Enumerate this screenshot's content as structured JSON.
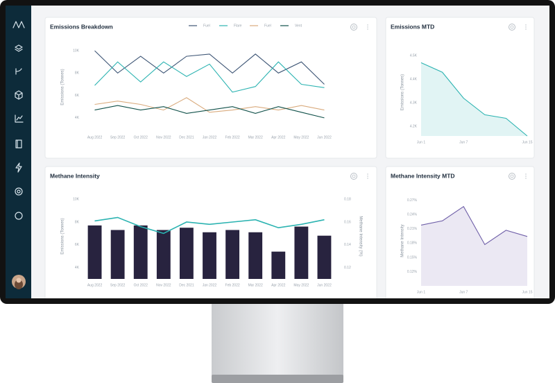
{
  "chart_data": [
    {
      "type": "line",
      "title": "Emissions Breakdown",
      "y_label": "Emissions (Tonnes)",
      "categories": [
        "Aug 2022",
        "Sep 2022",
        "Oct 2022",
        "Nov 2022",
        "Dec 2021",
        "Jan 2022",
        "Feb 2022",
        "Mar 2022",
        "Apr 2022",
        "May 2022",
        "Jun 2022"
      ],
      "series": [
        {
          "name": "Fuel",
          "color": "#3d5575",
          "values": [
            10000,
            8000,
            9500,
            8000,
            9500,
            9700,
            8000,
            9700,
            8000,
            9000,
            7000
          ]
        },
        {
          "name": "Flare",
          "color": "#2bb3b1",
          "values": [
            6900,
            9000,
            7200,
            9000,
            7700,
            8800,
            6300,
            6800,
            9000,
            7000,
            6700
          ]
        },
        {
          "name": "Fuel",
          "color": "#d9aa7c",
          "values": [
            5200,
            5500,
            5200,
            4700,
            5800,
            4500,
            4700,
            5000,
            4700,
            5100,
            4700
          ]
        },
        {
          "name": "Vent",
          "color": "#0e4f48",
          "values": [
            4700,
            5100,
            4700,
            5000,
            4400,
            4700,
            5000,
            4400,
            5000,
            4500,
            4000
          ]
        }
      ],
      "ylim": [
        3000,
        10500
      ],
      "yticks": [
        {
          "value": 4000,
          "label": "4K"
        },
        {
          "value": 6000,
          "label": "6K"
        },
        {
          "value": 8000,
          "label": "8K"
        },
        {
          "value": 10000,
          "label": "10K"
        }
      ],
      "legend": "top",
      "grid": false
    },
    {
      "type": "area",
      "title": "Emissions MTD",
      "y_label": "Emissions (Tonnes)",
      "categories": [
        "Jun 1",
        null,
        "Jun 7",
        null,
        null,
        "Jun 15"
      ],
      "values": [
        4470,
        4430,
        4320,
        4250,
        4235,
        4160
      ],
      "color": "#2bb3b1",
      "ylim": [
        4160,
        4530
      ],
      "yticks": [
        {
          "value": 4200,
          "label": "4.2K"
        },
        {
          "value": 4300,
          "label": "4.3K"
        },
        {
          "value": 4400,
          "label": "4.4K"
        },
        {
          "value": 4500,
          "label": "4.5K"
        }
      ],
      "grid": false
    },
    {
      "type": "bar",
      "title": "Methane Intensity",
      "y_label": "Emissions (Tonnes)",
      "y2_label": "Methane Intensity (%)",
      "categories": [
        "Aug 2022",
        "Sep 2022",
        "Oct 2022",
        "Nov 2022",
        "Dec 2021",
        "Jan 2022",
        "Feb 2022",
        "Mar 2022",
        "Apr 2022",
        "May 2022",
        "Jun 2022"
      ],
      "series": [
        {
          "type": "bar",
          "color": "#28233f",
          "values": [
            7700,
            7300,
            7700,
            7300,
            7500,
            7100,
            7300,
            7100,
            5400,
            7600,
            6800
          ]
        },
        {
          "type": "line",
          "axis": "y2",
          "color": "#2bb3b1",
          "values": [
            0.161,
            0.164,
            0.156,
            0.15,
            0.16,
            0.158,
            0.16,
            0.162,
            0.155,
            0.158,
            0.162
          ]
        }
      ],
      "ylim": [
        3000,
        10500
      ],
      "yticks": [
        {
          "value": 4000,
          "label": "4K"
        },
        {
          "value": 6000,
          "label": "6K"
        },
        {
          "value": 8000,
          "label": "8K"
        },
        {
          "value": 10000,
          "label": "10K"
        }
      ],
      "y2lim": [
        0.11,
        0.185
      ],
      "y2ticks": [
        0.12,
        0.14,
        0.16,
        0.18
      ],
      "grid": false
    },
    {
      "type": "area",
      "title": "Methane Intensity MTD",
      "y_label": "Methane Intensity",
      "categories": [
        "Jun 1",
        null,
        "Jun 7",
        null,
        null,
        "Jun 15"
      ],
      "values": [
        0.218,
        0.227,
        0.257,
        0.177,
        0.207,
        0.194
      ],
      "color": "#6f5fa8",
      "ylim": [
        0.09,
        0.28
      ],
      "yticks": [
        {
          "value": 0.12,
          "label": "0.12%"
        },
        {
          "value": 0.15,
          "label": "0.15%"
        },
        {
          "value": 0.18,
          "label": "0.18%"
        },
        {
          "value": 0.21,
          "label": "0.21%"
        },
        {
          "value": 0.24,
          "label": "0.24%"
        },
        {
          "value": 0.27,
          "label": "0.27%"
        }
      ],
      "grid": false
    }
  ]
}
